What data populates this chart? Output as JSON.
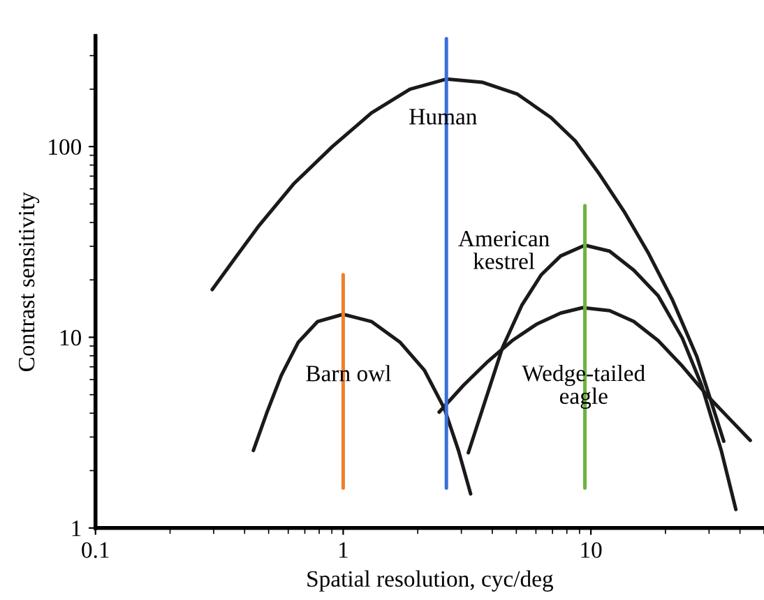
{
  "chart_data": {
    "type": "line",
    "xlabel": "Spatial resolution, cyc/deg",
    "ylabel": "Contrast sensitivity",
    "log": "xy",
    "xlim": [
      0.1,
      50
    ],
    "ylim": [
      1,
      380
    ],
    "xticks": [
      0.1,
      1,
      10
    ],
    "yticks": [
      1,
      10,
      100
    ],
    "grid": false,
    "legend": false,
    "marker": "none",
    "line_style": "solid",
    "series": [
      {
        "color": "#1a1a1a",
        "x": [
          0.296,
          0.366,
          0.458,
          0.63,
          0.904,
          1.3,
          1.86,
          2.61,
          3.66,
          5.03,
          6.9,
          8.65,
          10.8,
          13.6,
          17.1,
          21.4,
          26.8,
          34.4
        ],
        "values": [
          17.8,
          26,
          38.6,
          63.6,
          100,
          150,
          200,
          226,
          217,
          189,
          142,
          107,
          72,
          45.8,
          27.5,
          15.6,
          7.9,
          2.85
        ]
      },
      {
        "color": "#1a1a1a",
        "x": [
          0.434,
          0.491,
          0.562,
          0.658,
          0.789,
          1.0,
          1.3,
          1.7,
          2.13,
          2.56,
          2.92,
          3.27
        ],
        "values": [
          2.55,
          4.0,
          6.3,
          9.4,
          12.1,
          13.2,
          12.1,
          9.4,
          6.7,
          4.24,
          2.55,
          1.51
        ]
      },
      {
        "color": "#1a1a1a",
        "x": [
          3.2,
          3.66,
          4.4,
          5.26,
          6.31,
          7.55,
          9.46,
          11.9,
          14.9,
          18.7,
          23.4,
          28.0,
          33.6,
          38.5
        ],
        "values": [
          2.48,
          4.24,
          8.85,
          14.7,
          21.3,
          26.7,
          30.4,
          28.3,
          22.5,
          16.5,
          9.9,
          5.6,
          2.55,
          1.25
        ]
      },
      {
        "color": "#1a1a1a",
        "x": [
          2.44,
          3.06,
          3.84,
          4.81,
          6.03,
          7.55,
          9.27,
          11.9,
          14.9,
          18.7,
          23.4,
          29.3,
          36.7,
          44
        ],
        "values": [
          4.05,
          5.6,
          7.47,
          9.6,
          11.7,
          13.4,
          14.3,
          13.8,
          12.1,
          9.6,
          7.06,
          5.0,
          3.68,
          2.88
        ]
      },
      {
        "color": "#f07f2a",
        "x": [
          1,
          1
        ],
        "values": [
          1.62,
          21.3
        ]
      },
      {
        "color": "#3a6fd8",
        "x": [
          2.61,
          2.61
        ],
        "values": [
          1.62,
          368
        ]
      },
      {
        "color": "#6cb33f",
        "x": [
          9.46,
          9.46
        ],
        "values": [
          1.62,
          49
        ]
      }
    ],
    "annotations": [
      {
        "text": "Human",
        "x": 2.53,
        "y": 140
      },
      "American\nkestrel",
      {
        "text": "Barn owl",
        "x": 1.05,
        "y": 6.3
      },
      {
        "text": "Wedge-tailed\neagle",
        "x": 9.35,
        "y": 5.5
      }
    ]
  }
}
